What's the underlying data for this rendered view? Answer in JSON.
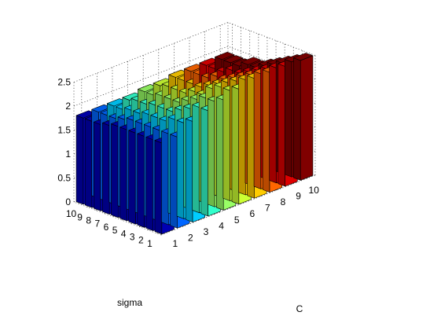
{
  "chart_data": {
    "type": "bar3",
    "title": "",
    "xlabel": "C",
    "ylabel": "sigma",
    "zlabel": "",
    "x": [
      1,
      2,
      3,
      4,
      5,
      6,
      7,
      8,
      9,
      10
    ],
    "y": [
      1,
      2,
      3,
      4,
      5,
      6,
      7,
      8,
      9,
      10
    ],
    "zlim": [
      0,
      2.5
    ],
    "zticks": [
      "0",
      "0.5",
      "1",
      "1.5",
      "2",
      "2.5"
    ],
    "grid": true,
    "colormap_by_x": [
      "#0000b4",
      "#0066ff",
      "#00ccff",
      "#33ffcc",
      "#99ff66",
      "#ccff33",
      "#ffcc00",
      "#ff6600",
      "#dd0000",
      "#800000"
    ],
    "values": [
      [
        1.9,
        1.9,
        2.1,
        2.2,
        2.3,
        2.4,
        2.5,
        2.5,
        2.5,
        2.5
      ],
      [
        1.9,
        1.9,
        2.0,
        2.2,
        2.2,
        2.3,
        2.4,
        2.4,
        2.4,
        2.4
      ],
      [
        1.9,
        1.9,
        2.0,
        2.1,
        2.2,
        2.3,
        2.3,
        2.3,
        2.3,
        2.3
      ],
      [
        1.9,
        1.9,
        1.9,
        2.0,
        2.1,
        2.2,
        2.2,
        2.2,
        2.2,
        2.2
      ],
      [
        1.9,
        1.9,
        1.9,
        1.9,
        2.0,
        2.0,
        2.1,
        2.1,
        2.1,
        2.1
      ],
      [
        1.9,
        1.9,
        1.9,
        1.9,
        1.9,
        2.0,
        2.0,
        2.0,
        2.0,
        2.0
      ],
      [
        1.85,
        1.85,
        1.85,
        1.9,
        1.9,
        1.9,
        1.9,
        2.0,
        2.0,
        2.0
      ],
      [
        1.8,
        1.8,
        1.85,
        1.85,
        1.9,
        1.9,
        1.9,
        1.9,
        1.9,
        1.9
      ],
      [
        1.8,
        1.8,
        1.8,
        1.85,
        1.85,
        1.9,
        1.9,
        1.9,
        1.9,
        1.9
      ],
      [
        1.8,
        1.8,
        1.8,
        1.8,
        1.85,
        1.85,
        1.9,
        1.9,
        1.9,
        1.9
      ]
    ]
  }
}
